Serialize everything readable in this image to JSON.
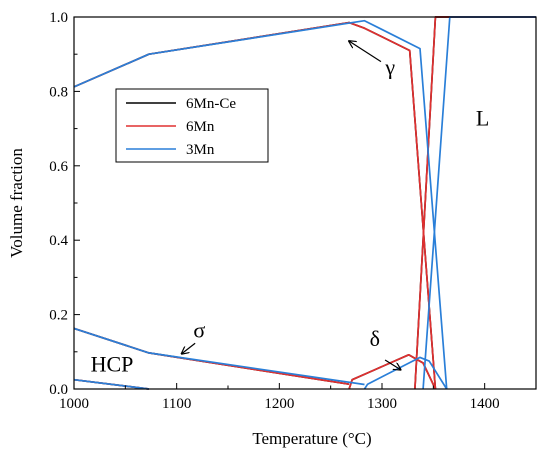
{
  "chart_data": {
    "type": "line",
    "xlabel": "Temperature (°C)",
    "ylabel": "Volume fraction",
    "xlim": [
      1000,
      1450
    ],
    "ylim": [
      0,
      1.0
    ],
    "x_ticks": [
      1000,
      1100,
      1200,
      1300,
      1400
    ],
    "y_ticks": [
      0.0,
      0.2,
      0.4,
      0.6,
      0.8,
      1.0
    ],
    "x_tick_labels": [
      "1000",
      "1100",
      "1200",
      "1300",
      "1400"
    ],
    "y_tick_labels": [
      "0.0",
      "0.2",
      "0.4",
      "0.6",
      "0.8",
      "1.0"
    ],
    "grid": false,
    "legend_position": "upper-left",
    "series": [
      {
        "name": "6Mn-Ce",
        "color": "#000000",
        "segments": [
          [
            [
              1000,
              0.812
            ],
            [
              1073,
              0.9
            ],
            [
              1268,
              0.985
            ],
            [
              1283,
              0.97
            ],
            [
              1327,
              0.91
            ],
            [
              1352,
              0.0
            ]
          ],
          [
            [
              1332,
              0.0
            ],
            [
              1352,
              1.0
            ],
            [
              1450,
              1.0
            ]
          ],
          [
            [
              1000,
              0.163
            ],
            [
              1073,
              0.097
            ],
            [
              1268,
              0.013
            ]
          ],
          [
            [
              1000,
              0.025
            ],
            [
              1073,
              0.0
            ]
          ],
          [
            [
              1268,
              0.0
            ],
            [
              1271,
              0.025
            ],
            [
              1290,
              0.048
            ],
            [
              1326,
              0.092
            ],
            [
              1340,
              0.07
            ],
            [
              1352,
              0.0
            ]
          ]
        ]
      },
      {
        "name": "6Mn",
        "color": "#e03030",
        "segments": [
          [
            [
              1000,
              0.812
            ],
            [
              1073,
              0.9
            ],
            [
              1268,
              0.985
            ],
            [
              1283,
              0.97
            ],
            [
              1327,
              0.91
            ],
            [
              1352,
              0.0
            ]
          ],
          [
            [
              1332,
              0.0
            ],
            [
              1352,
              1.0
            ],
            [
              1450,
              1.0
            ]
          ],
          [
            [
              1000,
              0.163
            ],
            [
              1073,
              0.097
            ],
            [
              1268,
              0.013
            ]
          ],
          [
            [
              1000,
              0.025
            ],
            [
              1073,
              0.0
            ]
          ],
          [
            [
              1268,
              0.0
            ],
            [
              1271,
              0.025
            ],
            [
              1290,
              0.048
            ],
            [
              1326,
              0.092
            ],
            [
              1340,
              0.07
            ],
            [
              1352,
              0.0
            ]
          ]
        ]
      },
      {
        "name": "3Mn",
        "color": "#2a7fd8",
        "segments": [
          [
            [
              1000,
              0.812
            ],
            [
              1073,
              0.9
            ],
            [
              1283,
              0.99
            ],
            [
              1337,
              0.915
            ],
            [
              1363,
              0.0
            ]
          ],
          [
            [
              1340,
              0.0
            ],
            [
              1366,
              1.0
            ],
            [
              1450,
              1.0
            ]
          ],
          [
            [
              1000,
              0.163
            ],
            [
              1073,
              0.097
            ],
            [
              1283,
              0.012
            ]
          ],
          [
            [
              1000,
              0.025
            ],
            [
              1073,
              0.0
            ]
          ],
          [
            [
              1283,
              0.0
            ],
            [
              1286,
              0.013
            ],
            [
              1337,
              0.085
            ],
            [
              1346,
              0.075
            ],
            [
              1363,
              0.0
            ]
          ]
        ]
      }
    ],
    "annotations": [
      {
        "text": "γ",
        "x": 1308,
        "y": 0.845,
        "arrow_from": [
          1299,
          0.88
        ],
        "arrow_to": [
          1268,
          0.935
        ]
      },
      {
        "text": "σ",
        "x": 1122,
        "y": 0.138,
        "arrow_from": [
          1118,
          0.123
        ],
        "arrow_to": [
          1105,
          0.095
        ]
      },
      {
        "text": "δ",
        "x": 1293,
        "y": 0.115,
        "arrow_from": [
          1303,
          0.078
        ],
        "arrow_to": [
          1318,
          0.052
        ]
      },
      {
        "text": "HCP",
        "x": 1037,
        "y": 0.047
      },
      {
        "text": "L",
        "x": 1398,
        "y": 0.708
      }
    ]
  }
}
